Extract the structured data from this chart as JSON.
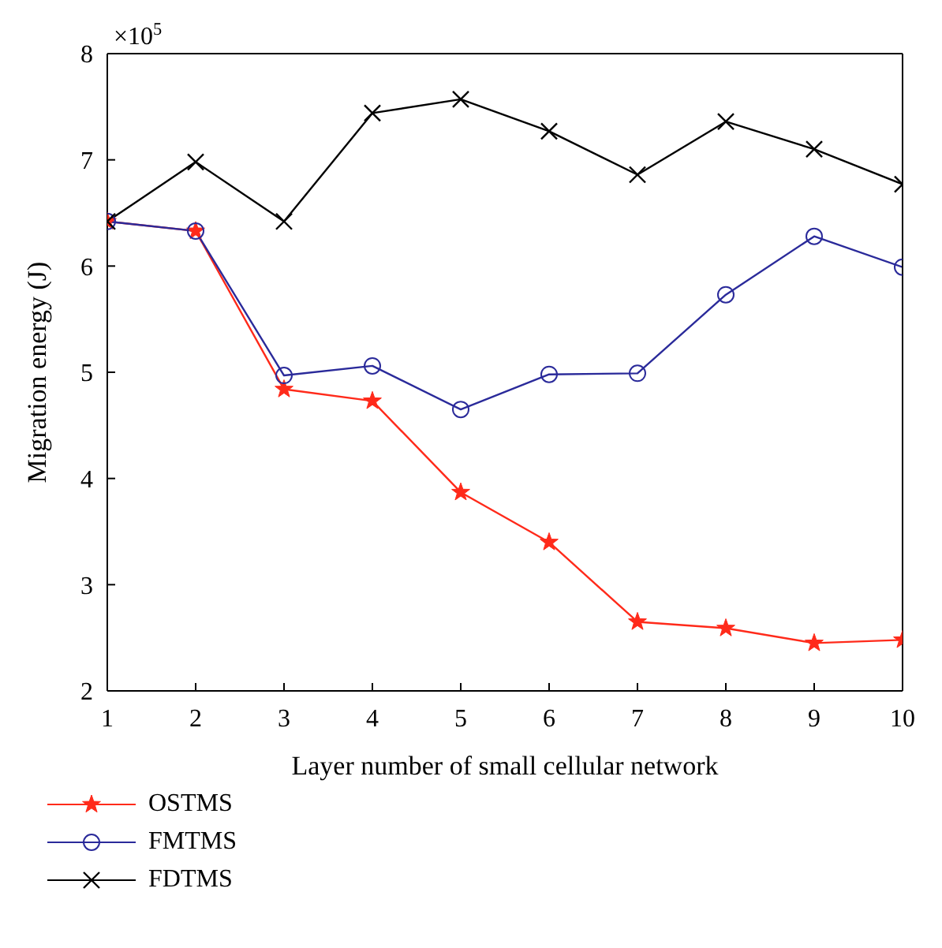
{
  "chart_data": {
    "type": "line",
    "xlabel": "Layer number of small cellular network",
    "ylabel": "Migration energy (J)",
    "annotations": [
      "×10$^{5}$"
    ],
    "x": [
      1,
      2,
      3,
      4,
      5,
      6,
      7,
      8,
      9,
      10
    ],
    "series": [
      {
        "name": "OSTMS",
        "color": "#ff2a1a",
        "marker": "star",
        "values": [
          6.42,
          6.33,
          4.84,
          4.73,
          3.87,
          3.4,
          2.65,
          2.59,
          2.45,
          2.48
        ]
      },
      {
        "name": "FMTMS",
        "color": "#2a2a9a",
        "marker": "circle",
        "values": [
          6.42,
          6.33,
          4.97,
          5.06,
          4.65,
          4.98,
          4.99,
          5.73,
          6.28,
          5.99
        ]
      },
      {
        "name": "FDTMS",
        "color": "#000000",
        "marker": "cross",
        "values": [
          6.42,
          6.98,
          6.42,
          7.44,
          7.57,
          7.27,
          6.86,
          7.36,
          7.1,
          6.77
        ]
      }
    ],
    "xlim": [
      1,
      10
    ],
    "xticks": [
      1,
      2,
      3,
      4,
      5,
      6,
      7,
      8,
      9,
      10
    ],
    "ylim": [
      2,
      8
    ],
    "yticks": [
      2,
      3,
      4,
      5,
      6,
      7,
      8
    ],
    "grid": false,
    "legend": "bottom left",
    "line_style": "solid"
  }
}
